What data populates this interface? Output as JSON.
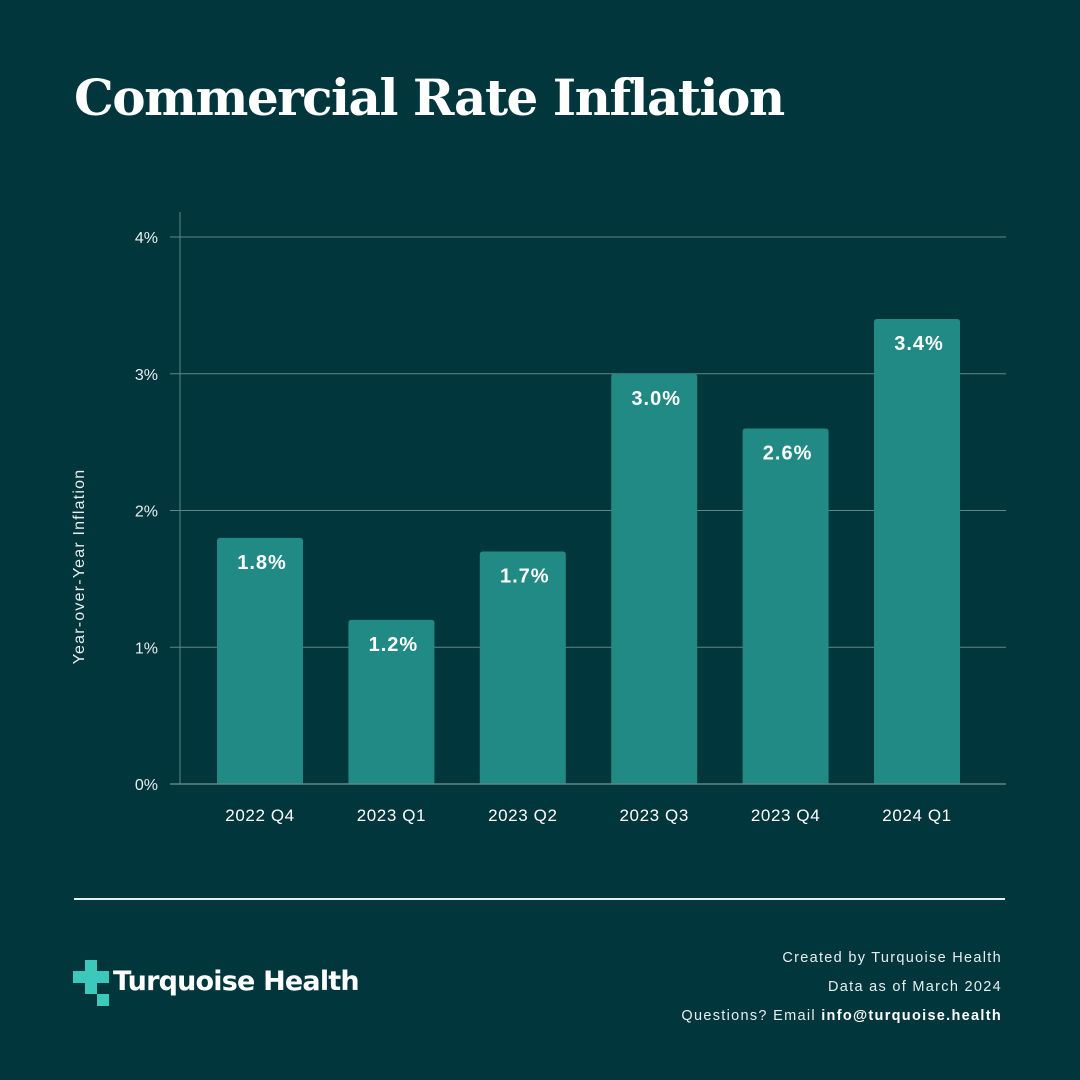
{
  "title": "Commercial Rate Inflation",
  "colors": {
    "background": "#02363d",
    "bar": "#218a84",
    "grid": "#5f8589",
    "logo_accent": "#3cc8bb",
    "text": "#ffffff"
  },
  "chart_data": {
    "type": "bar",
    "title": "Commercial Rate Inflation",
    "xlabel": "",
    "ylabel": "Year-over-Year Inflation",
    "categories": [
      "2022 Q4",
      "2023 Q1",
      "2023 Q2",
      "2023 Q3",
      "2023 Q4",
      "2024 Q1"
    ],
    "values": [
      1.8,
      1.2,
      1.7,
      3.0,
      2.6,
      3.4
    ],
    "value_labels": [
      "1.8%",
      "1.2%",
      "1.7%",
      "3.0%",
      "2.6%",
      "3.4%"
    ],
    "unit": "%",
    "ylim": [
      0,
      4
    ],
    "yticks": [
      0,
      1,
      2,
      3,
      4
    ],
    "ytick_labels": [
      "0%",
      "1%",
      "2%",
      "3%",
      "4%"
    ],
    "grid": true,
    "legend": "none"
  },
  "footer": {
    "logo_text": "Turquoise Health",
    "logo_icon": "medical-cross-icon",
    "credits": {
      "created_by": "Created by Turquoise Health",
      "data_as_of": "Data as of March 2024",
      "questions_prefix": "Questions?  Email",
      "email": "info@turquoise.health"
    }
  }
}
